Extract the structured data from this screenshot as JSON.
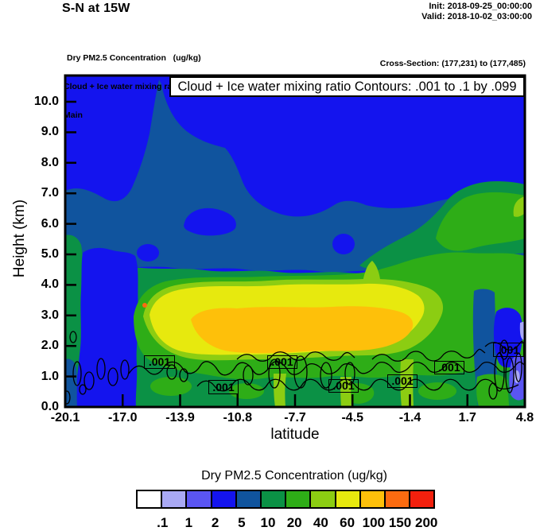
{
  "header": {
    "title": "S-N at 15W",
    "init_label": "Init: 2018-09-25_00:00:00",
    "valid_label": "Valid: 2018-10-02_03:00:00",
    "fields": [
      "Dry PM2.5 Concentration   (ug/kg)",
      "Cloud + Ice water mixing ratio   (g/kg)",
      "Main"
    ],
    "cross_section": "Cross-Section: (177,231) to (177,485)"
  },
  "plot": {
    "contour_title": "Cloud + Ice water mixing ratio Contours: .001 to .1 by .099",
    "xlabel": "latitude",
    "ylabel": "Height (km)",
    "x_ticks": [
      "-20.1",
      "-17.0",
      "-13.9",
      "-10.8",
      "-7.7",
      "-4.5",
      "-1.4",
      "1.7",
      "4.8"
    ],
    "y_ticks": [
      "0.0",
      "1.0",
      "2.0",
      "3.0",
      "4.0",
      "5.0",
      "6.0",
      "7.0",
      "8.0",
      "9.0",
      "10.0"
    ],
    "contour_label": ".001"
  },
  "colorbar": {
    "title": "Dry PM2.5 Concentration  (ug/kg)",
    "tick_labels": [
      ".1",
      "1",
      "2",
      "5",
      "10",
      "20",
      "40",
      "60",
      "100",
      "150",
      "200"
    ],
    "colors": [
      "#ffffff",
      "#a9a9f4",
      "#5a55f2",
      "#1414ee",
      "#10549e",
      "#0b9145",
      "#2ead17",
      "#8ccd12",
      "#e7e90e",
      "#fec00a",
      "#fb6b10",
      "#f3200d"
    ]
  },
  "chart_data": {
    "type": "heatmap",
    "title": "Cloud + Ice water mixing ratio Contours: .001 to .1 by .099",
    "xlabel": "latitude",
    "ylabel": "Height (km)",
    "x_ticks": [
      -20.1,
      -17.0,
      -13.9,
      -10.8,
      -7.7,
      -4.5,
      -1.4,
      1.7,
      4.8
    ],
    "y_ticks": [
      0.0,
      1.0,
      2.0,
      3.0,
      4.0,
      5.0,
      6.0,
      7.0,
      8.0,
      9.0,
      10.0
    ],
    "xlim": [
      -20.1,
      4.8
    ],
    "ylim": [
      0.0,
      10.9
    ],
    "grid": false,
    "legend_position": "bottom colorbar",
    "fill_field": {
      "name": "Dry PM2.5 Concentration (ug/kg)",
      "levels": [
        0.1,
        1,
        2,
        5,
        10,
        20,
        40,
        60,
        100,
        150,
        200
      ],
      "palette": [
        "white",
        "light-purple",
        "blue-violet",
        "blue",
        "dark-steel-blue",
        "sea-green",
        "green",
        "yellow-green",
        "yellow",
        "gold-orange",
        "orange",
        "red"
      ],
      "features": [
        {
          "region": "upper troposphere ~5.5-10.9 km across whole section",
          "value_ug_kg": "2-5"
        },
        {
          "region": "mid-level band ~4.5-6.5 km spanning section, peak column near lat -16 reaching 10.5 km",
          "value_ug_kg": "5-10"
        },
        {
          "region": "low-level column lat -19.5 to -17.5 from 0-5 km",
          "value_ug_kg": "2-5"
        },
        {
          "region": "boundary layer 0-3.5 km most of section",
          "value_ug_kg": "10-40"
        },
        {
          "region": "elevated plume ring 1.5-4 km, lat -15 to -3",
          "value_ug_kg": "40-100"
        },
        {
          "region": "plume core ~2-3 km, lat -14 to -5",
          "value_ug_kg": "100-150"
        },
        {
          "region": "tiny spot near lat -15.8 at 3.3 km",
          "value_ug_kg": "150-200"
        },
        {
          "region": "elevated green layer 4.5-7 km, lat 0 to 4.8",
          "value_ug_kg": "10-40"
        },
        {
          "region": "right edge below 2 km near lat 4-4.8",
          "value_ug_kg": "0.1-2"
        }
      ]
    },
    "contour_field": {
      "name": "Cloud + Ice water mixing ratio (g/kg)",
      "contour_start": 0.001,
      "contour_end": 0.1,
      "contour_interval": 0.099,
      "labeled_value": ".001",
      "label_count": 7,
      "description": "thin black cloud contours below ~2 km scattered along the whole section"
    }
  }
}
